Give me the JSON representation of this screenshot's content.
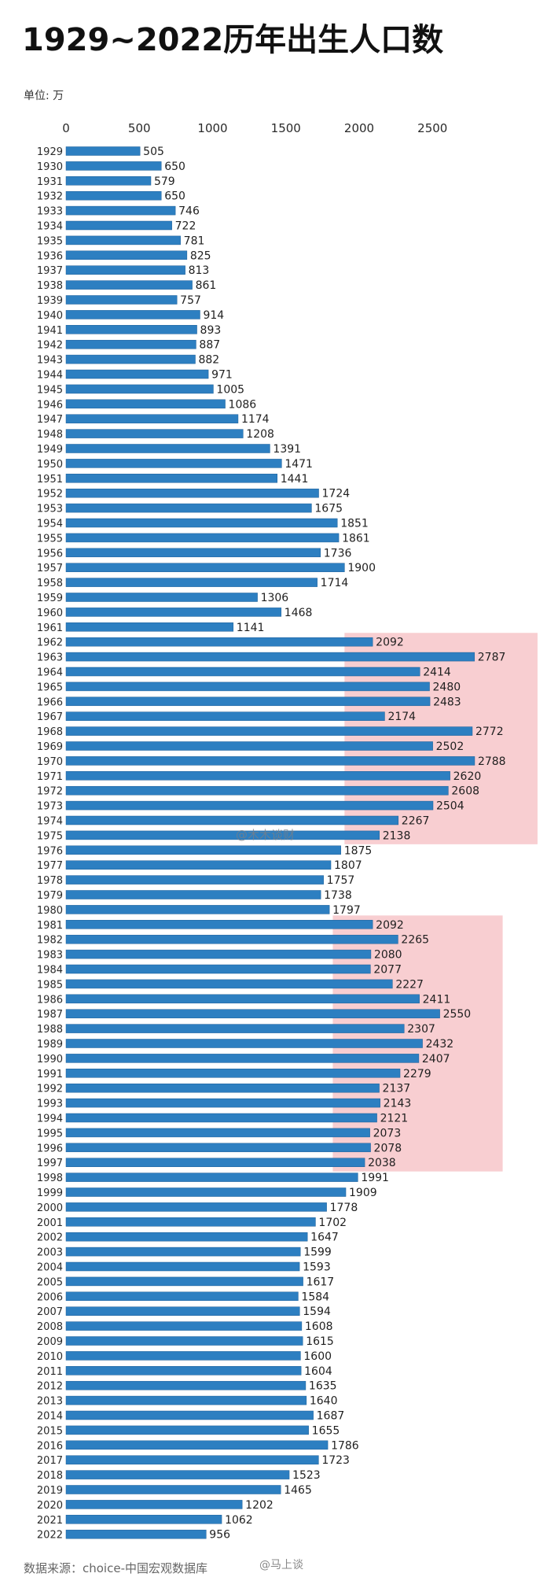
{
  "chart_data": {
    "type": "bar",
    "orientation": "horizontal",
    "title": "1929~2022历年出生人口数",
    "unit_label": "单位: 万",
    "xlabel": "",
    "ylabel": "",
    "xlim": [
      0,
      3000
    ],
    "xticks": [
      0,
      500,
      1000,
      1500,
      2000,
      2500
    ],
    "grid": false,
    "categories": [
      "1929",
      "1930",
      "1931",
      "1932",
      "1933",
      "1934",
      "1935",
      "1936",
      "1937",
      "1938",
      "1939",
      "1940",
      "1941",
      "1942",
      "1943",
      "1944",
      "1945",
      "1946",
      "1947",
      "1948",
      "1949",
      "1950",
      "1951",
      "1952",
      "1953",
      "1954",
      "1955",
      "1956",
      "1957",
      "1958",
      "1959",
      "1960",
      "1961",
      "1962",
      "1963",
      "1964",
      "1965",
      "1966",
      "1967",
      "1968",
      "1969",
      "1970",
      "1971",
      "1972",
      "1973",
      "1974",
      "1975",
      "1976",
      "1977",
      "1978",
      "1979",
      "1980",
      "1981",
      "1982",
      "1983",
      "1984",
      "1985",
      "1986",
      "1987",
      "1988",
      "1989",
      "1990",
      "1991",
      "1992",
      "1993",
      "1994",
      "1995",
      "1996",
      "1997",
      "1998",
      "1999",
      "2000",
      "2001",
      "2002",
      "2003",
      "2004",
      "2005",
      "2006",
      "2007",
      "2008",
      "2009",
      "2010",
      "2011",
      "2012",
      "2013",
      "2014",
      "2015",
      "2016",
      "2017",
      "2018",
      "2019",
      "2020",
      "2021",
      "2022"
    ],
    "values": [
      505,
      650,
      579,
      650,
      746,
      722,
      781,
      825,
      813,
      861,
      757,
      914,
      893,
      887,
      882,
      971,
      1005,
      1086,
      1174,
      1208,
      1391,
      1471,
      1441,
      1724,
      1675,
      1851,
      1861,
      1736,
      1900,
      1714,
      1306,
      1468,
      1141,
      2092,
      2787,
      2414,
      2480,
      2483,
      2174,
      2772,
      2502,
      2788,
      2620,
      2608,
      2504,
      2267,
      2138,
      1875,
      1807,
      1757,
      1738,
      1797,
      2092,
      2265,
      2080,
      2077,
      2227,
      2411,
      2550,
      2307,
      2432,
      2407,
      2279,
      2137,
      2143,
      2121,
      2073,
      2078,
      2038,
      1991,
      1909,
      1778,
      1702,
      1647,
      1599,
      1593,
      1617,
      1584,
      1594,
      1608,
      1615,
      1600,
      1604,
      1635,
      1640,
      1687,
      1655,
      1786,
      1723,
      1523,
      1465,
      1202,
      1062,
      956
    ],
    "highlights": [
      {
        "from": "1962",
        "to": "1975",
        "x_start": 1900
      },
      {
        "from": "1981",
        "to": "1997",
        "x_start": 1820
      }
    ],
    "colors": {
      "bar": "#2d7fc1",
      "bar_edge": "#1d5f97",
      "highlight": "#f2a5ac",
      "axis_text": "#2a2a2a",
      "label_text": "#1f1f1f"
    }
  },
  "watermark": "@木木谈财",
  "footer": {
    "source": "数据来源：choice-中国宏观数据库",
    "credit": "@马上谈"
  }
}
